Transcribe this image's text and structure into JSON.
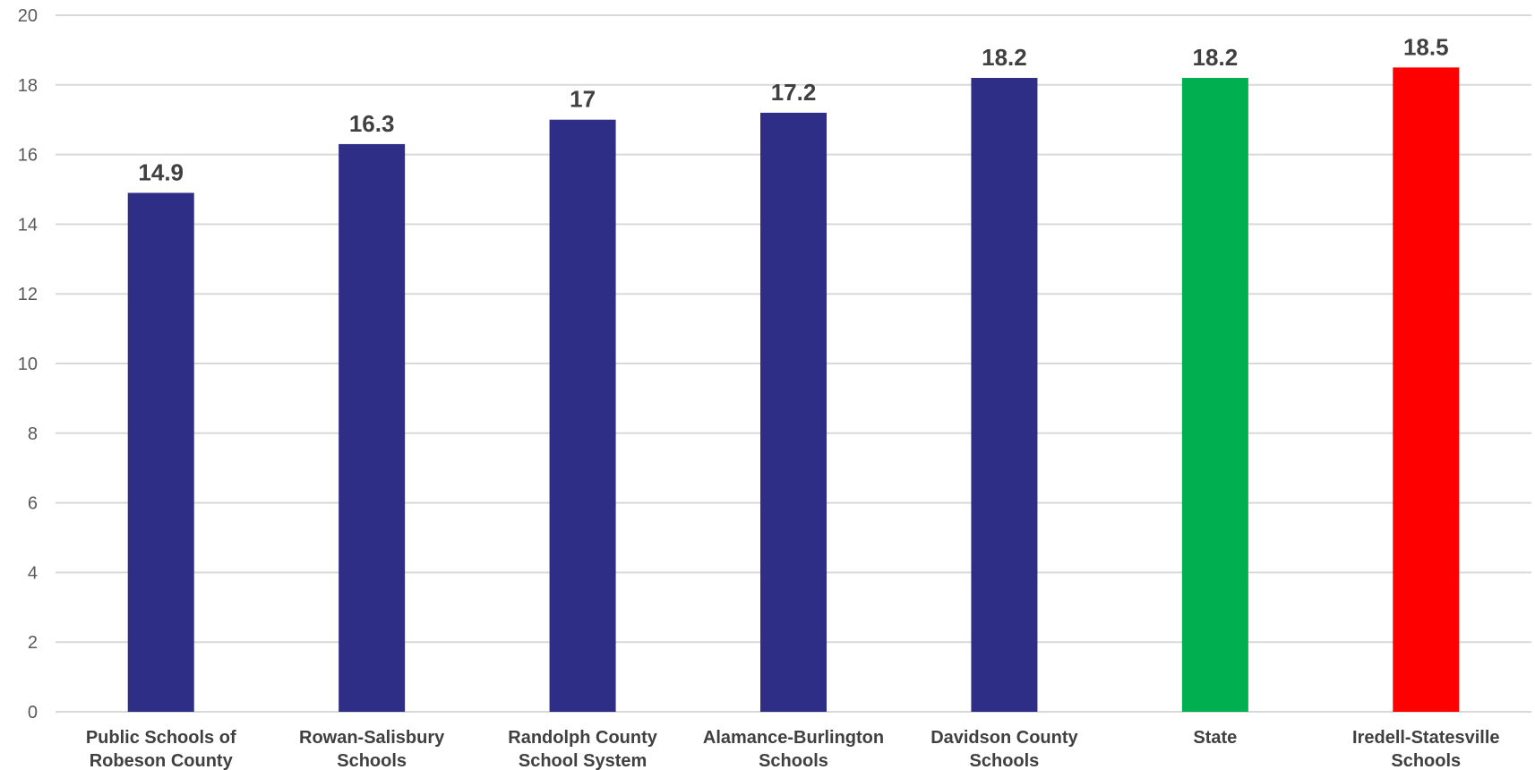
{
  "chart_data": {
    "type": "bar",
    "title": "",
    "xlabel": "",
    "ylabel": "",
    "ylim": [
      0,
      20
    ],
    "yticks": [
      0,
      2,
      4,
      6,
      8,
      10,
      12,
      14,
      16,
      18,
      20
    ],
    "grid": true,
    "legend": "none",
    "categories": [
      [
        "Public Schools of",
        "Robeson County"
      ],
      [
        "Rowan-Salisbury",
        "Schools"
      ],
      [
        "Randolph County",
        "School System"
      ],
      [
        "Alamance-Burlington",
        "Schools"
      ],
      [
        "Davidson County",
        "Schools"
      ],
      [
        "State"
      ],
      [
        "Iredell-Statesville",
        "Schools"
      ]
    ],
    "values": [
      14.9,
      16.3,
      17,
      17.2,
      18.2,
      18.2,
      18.5
    ],
    "value_labels": [
      "14.9",
      "16.3",
      "17",
      "17.2",
      "18.2",
      "18.2",
      "18.5"
    ],
    "bar_colors": [
      "#2e2e87",
      "#2e2e87",
      "#2e2e87",
      "#2e2e87",
      "#2e2e87",
      "#00b050",
      "#ff0000"
    ]
  }
}
